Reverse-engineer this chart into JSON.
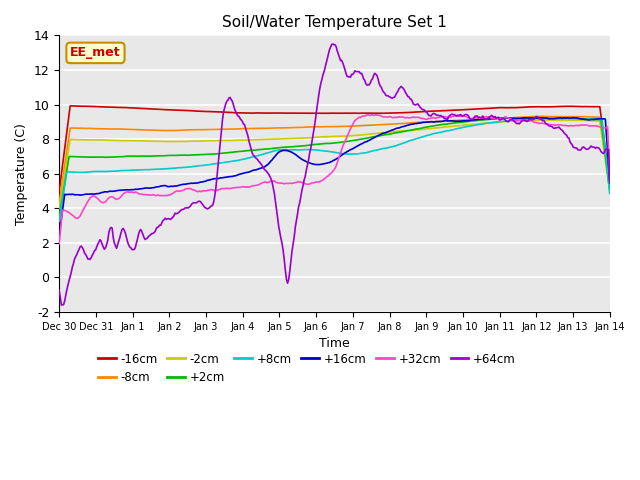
{
  "title": "Soil/Water Temperature Set 1",
  "xlabel": "Time",
  "ylabel": "Temperature (C)",
  "xlim": [
    0,
    15
  ],
  "ylim": [
    -2,
    14
  ],
  "yticks": [
    -2,
    0,
    2,
    4,
    6,
    8,
    10,
    12,
    14
  ],
  "xtick_labels": [
    "Dec 30",
    "Dec 31",
    "Jan 1",
    "Jan 2",
    "Jan 3",
    "Jan 4",
    "Jan 5",
    "Jan 6",
    "Jan 7",
    "Jan 8",
    "Jan 9",
    "Jan 10",
    "Jan 11",
    "Jan 12",
    "Jan 13",
    "Jan 14"
  ],
  "annotation_text": "EE_met",
  "bg_color": "#e8e8e8",
  "legend_colors": {
    "-16cm": "#cc0000",
    "-8cm": "#ff8800",
    "-2cm": "#cccc00",
    "+2cm": "#00bb00",
    "+8cm": "#00cccc",
    "+16cm": "#0000cc",
    "+32cm": "#ff44cc",
    "+64cm": "#9900cc"
  }
}
